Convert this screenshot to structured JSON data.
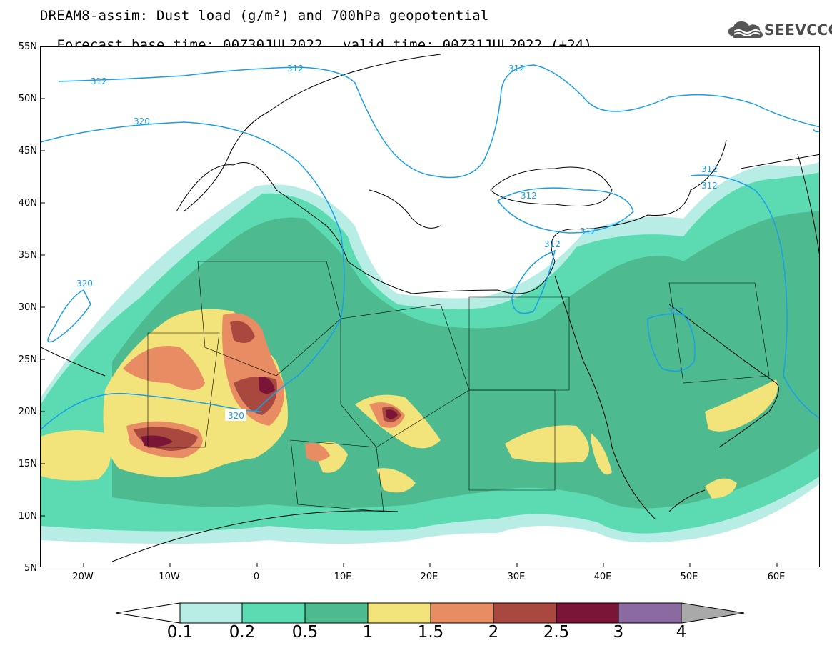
{
  "title": {
    "line1": "DREAM8-assim: Dust load (g/m²) and 700hPa geopotential",
    "line2_base": "Forecast base time: 00Z30JUL2022",
    "line2_valid": "valid time: 00Z31JUL2022 (+24)"
  },
  "logo": {
    "text": "SEEVCCC",
    "icon": "cloud-logo-icon"
  },
  "axes": {
    "lat_labels": [
      "55N",
      "50N",
      "45N",
      "40N",
      "35N",
      "30N",
      "25N",
      "20N",
      "15N",
      "10N",
      "5N"
    ],
    "lon_labels": [
      "20W",
      "10W",
      "0",
      "10E",
      "20E",
      "30E",
      "40E",
      "50E",
      "60E"
    ],
    "lon_range": [
      -25,
      65
    ],
    "lat_range": [
      5,
      55
    ]
  },
  "colorbar": {
    "labels": [
      "0.1",
      "0.2",
      "0.5",
      "1",
      "1.5",
      "2",
      "2.5",
      "3",
      "4"
    ],
    "colors": [
      "#ffffff",
      "#b7ede4",
      "#5cdbb3",
      "#4dba8f",
      "#f3e37b",
      "#e88c63",
      "#a8483f",
      "#7a1538",
      "#8a6aa0",
      "#a9a9a9"
    ]
  },
  "contours": {
    "color": "#1a9ee8",
    "labels": [
      "312",
      "312",
      "312",
      "320",
      "320",
      "320",
      "312",
      "312",
      "312",
      "312",
      "312"
    ]
  }
}
